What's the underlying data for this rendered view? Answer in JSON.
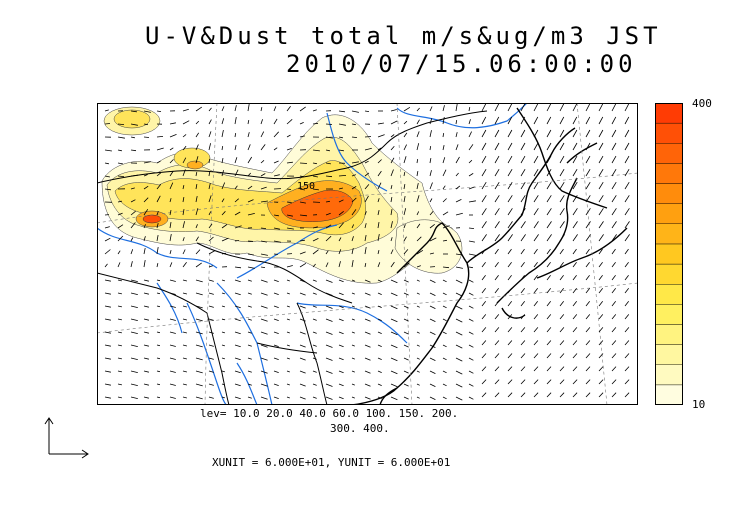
{
  "title": {
    "line1": "U-V&Dust total m/s&ug/m3 JST",
    "line2": "2010/07/15.06:00:00"
  },
  "colorbar": {
    "max_label": "400",
    "min_label": "10",
    "colors": [
      "#fffde0",
      "#fffac0",
      "#fff7a0",
      "#fff380",
      "#fff060",
      "#ffe848",
      "#ffd830",
      "#ffc820",
      "#ffb418",
      "#ffa010",
      "#ff8c0c",
      "#ff780a",
      "#ff6408",
      "#ff5006",
      "#ff3c04"
    ]
  },
  "legend": {
    "levels_line1": "lev= 10.0 20.0 40.0 60.0 100. 150. 200.",
    "levels_line2": "300. 400.",
    "unit_line": "XUNIT = 6.000E+01, YUNIT = 6.000E+01"
  },
  "map": {
    "contour_label": "150",
    "land_color": "#ffffff",
    "river_color": "#1e6fe0",
    "coast_color": "#000000"
  }
}
